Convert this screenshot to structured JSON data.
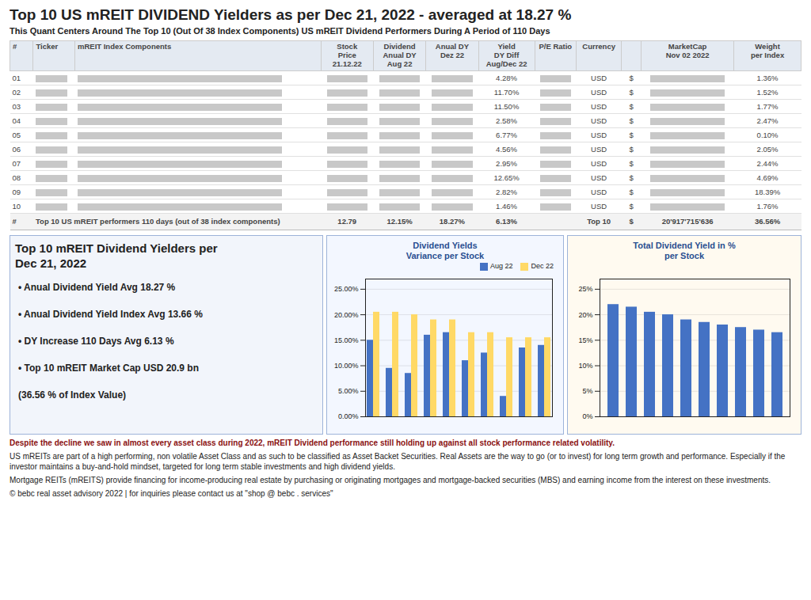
{
  "chart_data": [
    {
      "type": "table",
      "title": "Top 10 US mREIT DIVIDEND Yielders as per Dec 21, 2022 - averaged at 18.27 %",
      "subtitle": "This Quant Centers Around The Top 10 (Out Of 38 Index Components) US mREIT Dividend Performers During A Period of 110 Days",
      "columns": [
        [
          "#"
        ],
        [
          "Ticker"
        ],
        [
          "mREIT Index Components"
        ],
        [
          "Stock",
          "Price",
          "21.12.22"
        ],
        [
          "Dividend",
          "Anual DY",
          "Aug 22"
        ],
        [
          "Anual DY",
          "Dez 22"
        ],
        [
          "Yield",
          "DY Diff",
          "Aug/Dec 22"
        ],
        [
          "P/E Ratio"
        ],
        [
          "Currency"
        ],
        null,
        [
          "MarketCap",
          "Nov 02 2022"
        ],
        [
          "Weight",
          "per Index"
        ]
      ],
      "rows": [
        [
          "01",
          null,
          null,
          null,
          null,
          null,
          "4.28%",
          null,
          "USD",
          "$",
          null,
          "1.36%"
        ],
        [
          "02",
          null,
          null,
          null,
          null,
          null,
          "11.70%",
          null,
          "USD",
          "$",
          null,
          "1.52%"
        ],
        [
          "03",
          null,
          null,
          null,
          null,
          null,
          "11.50%",
          null,
          "USD",
          "$",
          null,
          "1.77%"
        ],
        [
          "04",
          null,
          null,
          null,
          null,
          null,
          "2.58%",
          null,
          "USD",
          "$",
          null,
          "2.47%"
        ],
        [
          "05",
          null,
          null,
          null,
          null,
          null,
          "6.77%",
          null,
          "USD",
          "$",
          null,
          "0.10%"
        ],
        [
          "06",
          null,
          null,
          null,
          null,
          null,
          "4.56%",
          null,
          "USD",
          "$",
          null,
          "2.05%"
        ],
        [
          "07",
          null,
          null,
          null,
          null,
          null,
          "2.95%",
          null,
          "USD",
          "$",
          null,
          "2.44%"
        ],
        [
          "08",
          null,
          null,
          null,
          null,
          null,
          "12.65%",
          null,
          "USD",
          "$",
          null,
          "4.69%"
        ],
        [
          "09",
          null,
          null,
          null,
          null,
          null,
          "2.82%",
          null,
          "USD",
          "$",
          null,
          "18.39%"
        ],
        [
          "10",
          null,
          null,
          null,
          null,
          null,
          "1.46%",
          null,
          "USD",
          "$",
          null,
          "1.76%"
        ]
      ],
      "totals": [
        "#",
        "Top 10 US mREIT performers 110 days (out of 38 index components)",
        "12.79",
        "12.15%",
        "18.27%",
        "6.13%",
        null,
        "Top 10",
        "$",
        "20'917'715'636",
        "36.56%"
      ]
    },
    {
      "type": "text",
      "title": "Top 10 mREIT Dividend Yielders per\nDec 21, 2022",
      "annotations": [
        "•  Anual Dividend Yield Avg 18.27 %",
        "•  Anual Dividend Yield Index Avg 13.66 %",
        "•  DY Increase 110 Days Avg 6.13 %",
        "•  Top 10 mREIT Market Cap USD 20.9 bn",
        "(36.56 % of Index Value)"
      ]
    },
    {
      "type": "bar",
      "title": "Dividend Yields\nVariance per Stock",
      "categories": [
        null,
        null,
        null,
        null,
        null,
        null,
        null,
        null,
        null,
        null
      ],
      "series": [
        {
          "name": "Aug 22",
          "color": "#4472C4",
          "values": [
            15.0,
            9.5,
            8.5,
            16.0,
            16.5,
            11.0,
            12.5,
            4.0,
            13.5,
            14.0
          ]
        },
        {
          "name": "Dec 22",
          "color": "#FFD966",
          "values": [
            20.5,
            20.5,
            20.0,
            19.0,
            19.0,
            16.5,
            16.5,
            15.5,
            15.5,
            15.5
          ]
        }
      ],
      "ylim": [
        0,
        27
      ],
      "yticks": [
        {
          "value": 0,
          "label": "0.00%"
        },
        {
          "value": 5,
          "label": "5.00%"
        },
        {
          "value": 10,
          "label": "10.00%"
        },
        {
          "value": 15,
          "label": "15.00%"
        },
        {
          "value": 20,
          "label": "20.00%"
        },
        {
          "value": 25,
          "label": "25.00%"
        }
      ],
      "grid": true,
      "legend": "upper right"
    },
    {
      "type": "bar",
      "title": "Total Dividend Yield in %\nper Stock",
      "categories": [
        null,
        null,
        null,
        null,
        null,
        null,
        null,
        null,
        null,
        null
      ],
      "values": [
        22.0,
        21.5,
        20.5,
        20.0,
        19.0,
        18.5,
        18.0,
        17.5,
        17.0,
        16.5
      ],
      "color": "#4472C4",
      "ylim": [
        0,
        27
      ],
      "yticks": [
        {
          "value": 0,
          "label": "0%"
        },
        {
          "value": 5,
          "label": "5%"
        },
        {
          "value": 10,
          "label": "10%"
        },
        {
          "value": 15,
          "label": "15%"
        },
        {
          "value": 20,
          "label": "20%"
        },
        {
          "value": 25,
          "label": "25%"
        }
      ],
      "grid": true
    },
    {
      "type": "text",
      "annotations": [
        "Despite the decline we saw in almost every asset class during 2022, mREIT Dividend performance still holding up against all stock performance related volatility.",
        "US mREITs are part of a high performing, non volatile Asset Class and as such to be classified as Asset Backet Securities. Real Assets are the way to go (or to invest) for long term growth and performance. Especially if the investor maintains a buy-and-hold mindset, targeted for long term stable investments and high dividend yields.",
        "Mortgage REITs (mREITS) provide financing for income-producing real estate by purchasing or originating mortgages and mortgage-backed securities (MBS) and earning income from the interest on these investments.",
        "© bebc real asset advisory 2022 | for inquiries please contact us at \"shop @ bebc . services\""
      ]
    }
  ]
}
